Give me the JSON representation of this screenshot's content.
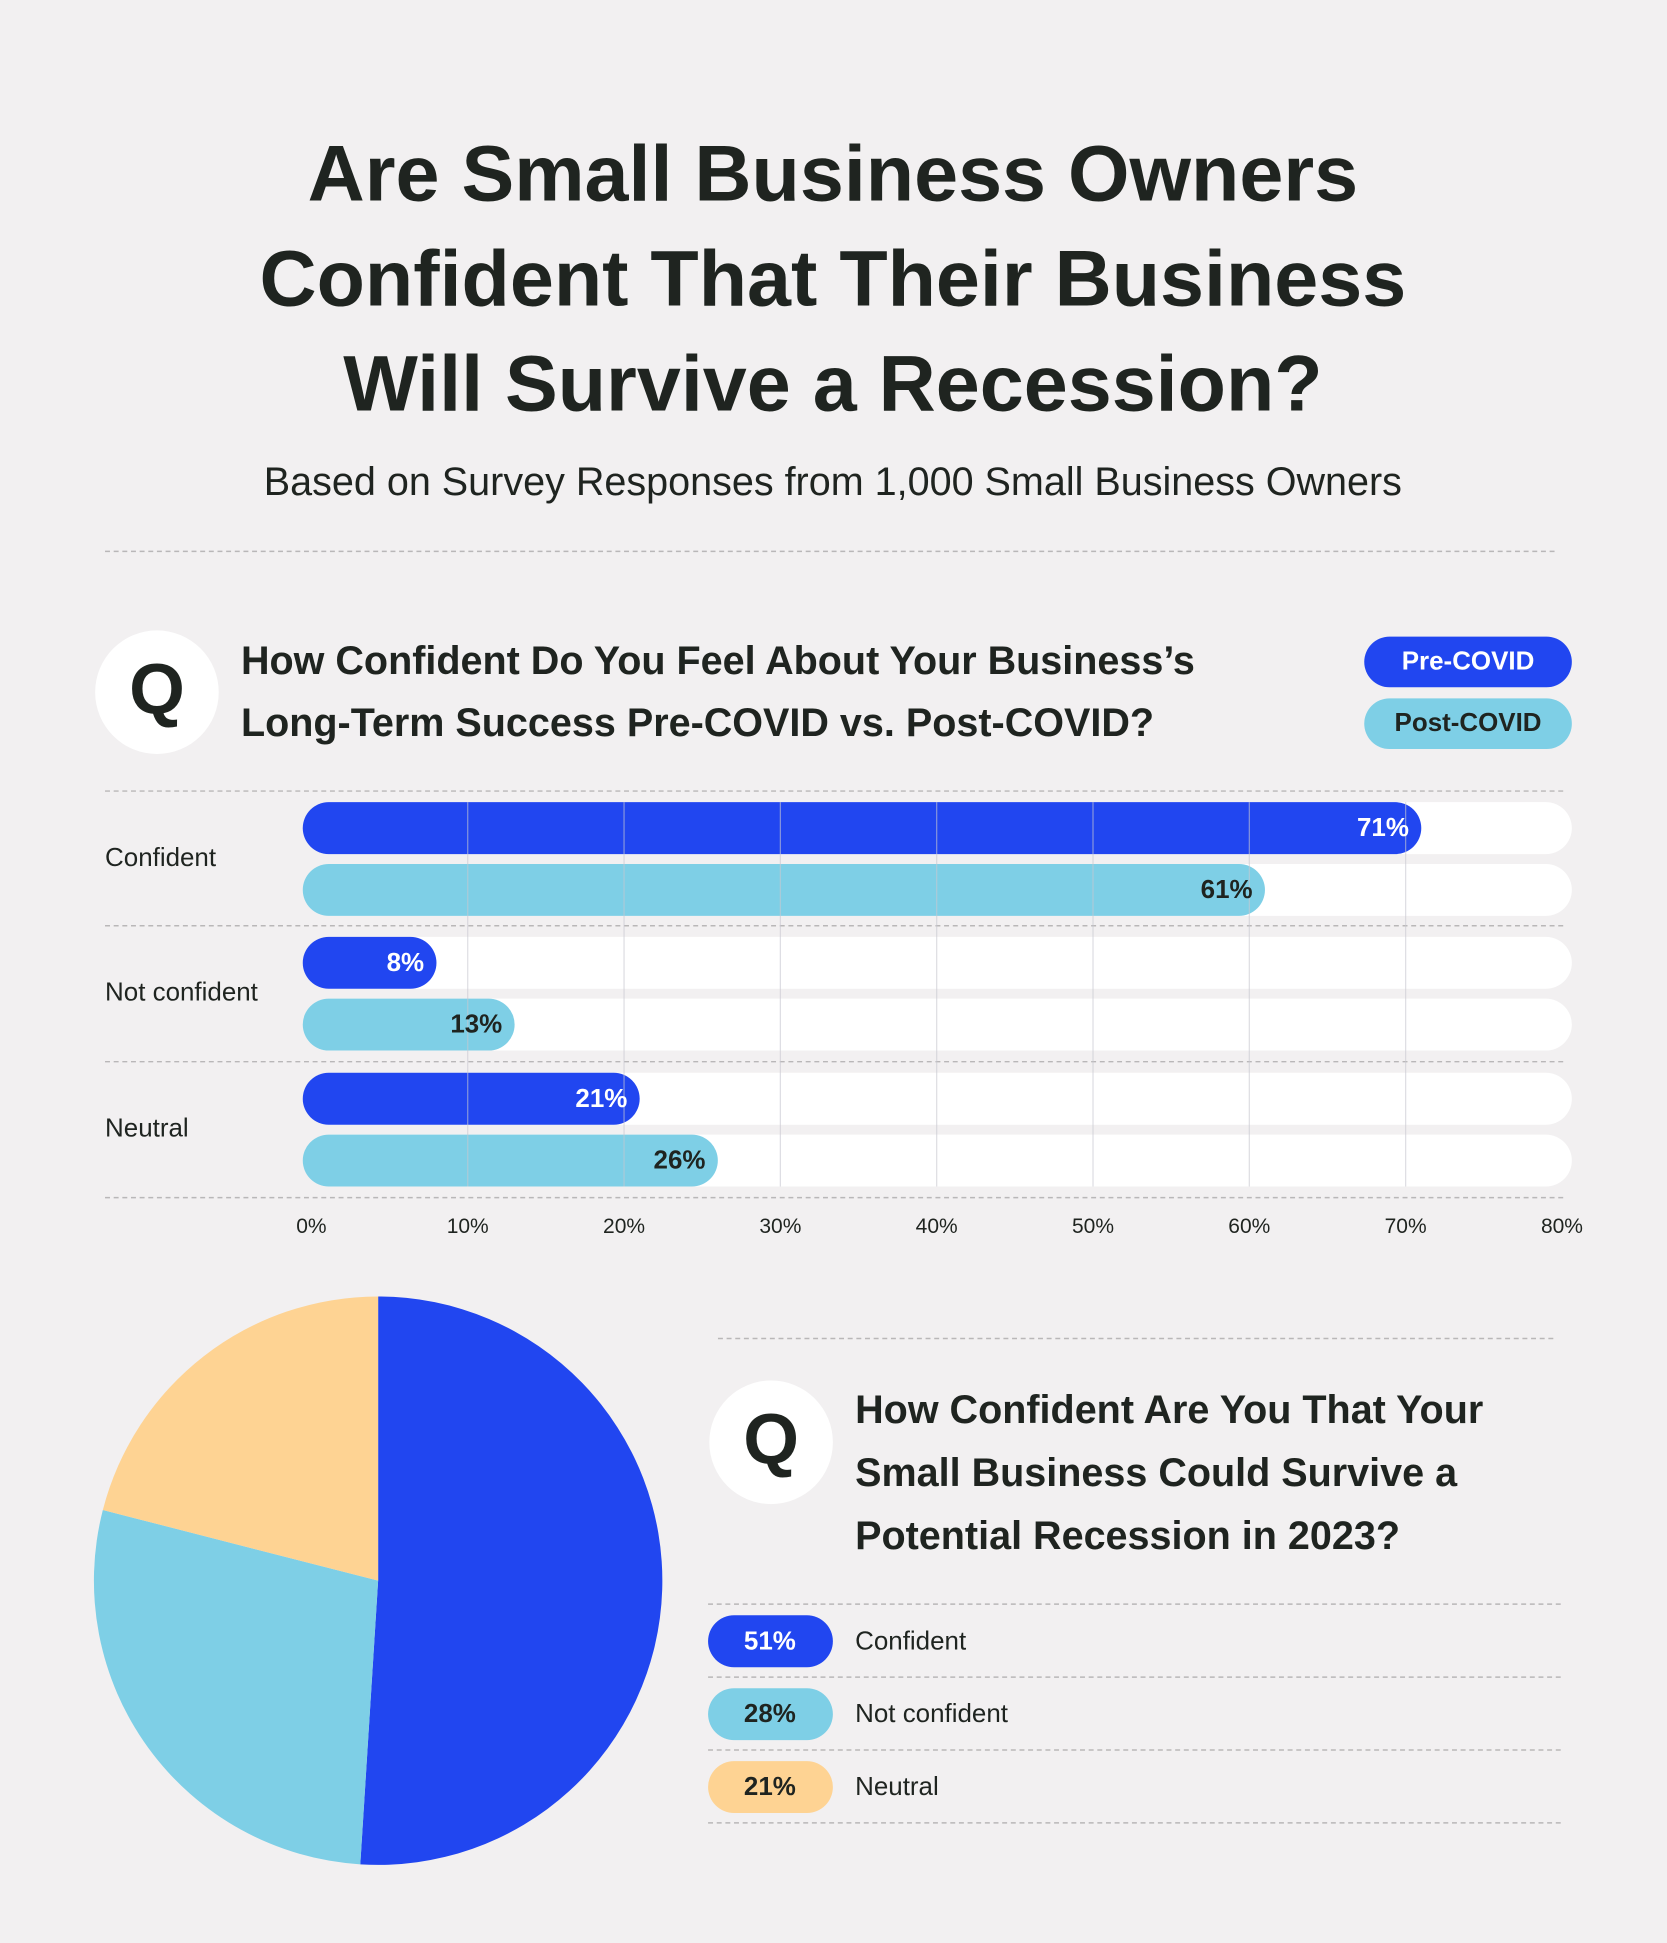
{
  "title": [
    "Are Small Business Owners",
    "Confident That Their Business",
    "Will Survive a Recession?"
  ],
  "subtitle": "Based on Survey Responses from 1,000 Small Business Owners",
  "chart_data": [
    {
      "type": "bar",
      "orientation": "horizontal",
      "badge": "Q",
      "title": [
        "How Confident Do You Feel About Your Business’s",
        "Long-Term Success Pre-COVID vs. Post-COVID?"
      ],
      "categories": [
        "Confident",
        "Not confident",
        "Neutral"
      ],
      "series": [
        {
          "name": "Pre-COVID",
          "color": "#2146f0",
          "values": [
            71,
            8,
            21
          ],
          "value_labels": [
            "71%",
            "8%",
            "21%"
          ]
        },
        {
          "name": "Post-COVID",
          "color": "#7ecfe6",
          "values": [
            61,
            13,
            26
          ],
          "value_labels": [
            "61%",
            "13%",
            "26%"
          ]
        }
      ],
      "xlim": [
        0,
        80
      ],
      "xticks": [
        {
          "value": 0,
          "label": "0%"
        },
        {
          "value": 10,
          "label": "10%"
        },
        {
          "value": 20,
          "label": "20%"
        },
        {
          "value": 30,
          "label": "30%"
        },
        {
          "value": 40,
          "label": "40%"
        },
        {
          "value": 50,
          "label": "50%"
        },
        {
          "value": 60,
          "label": "60%"
        },
        {
          "value": 70,
          "label": "70%"
        },
        {
          "value": 80,
          "label": "80%"
        }
      ],
      "grid": true
    },
    {
      "type": "pie",
      "badge": "Q",
      "title": [
        "How Confident Are You That Your",
        "Small Business Could Survive a",
        "Potential Recession in 2023?"
      ],
      "categories": [
        "Confident",
        "Not confident",
        "Neutral"
      ],
      "values": [
        51,
        28,
        21
      ],
      "value_labels": [
        "51%",
        "28%",
        "21%"
      ],
      "colors": [
        "#2146f0",
        "#7ecfe6",
        "#fed393"
      ]
    }
  ]
}
